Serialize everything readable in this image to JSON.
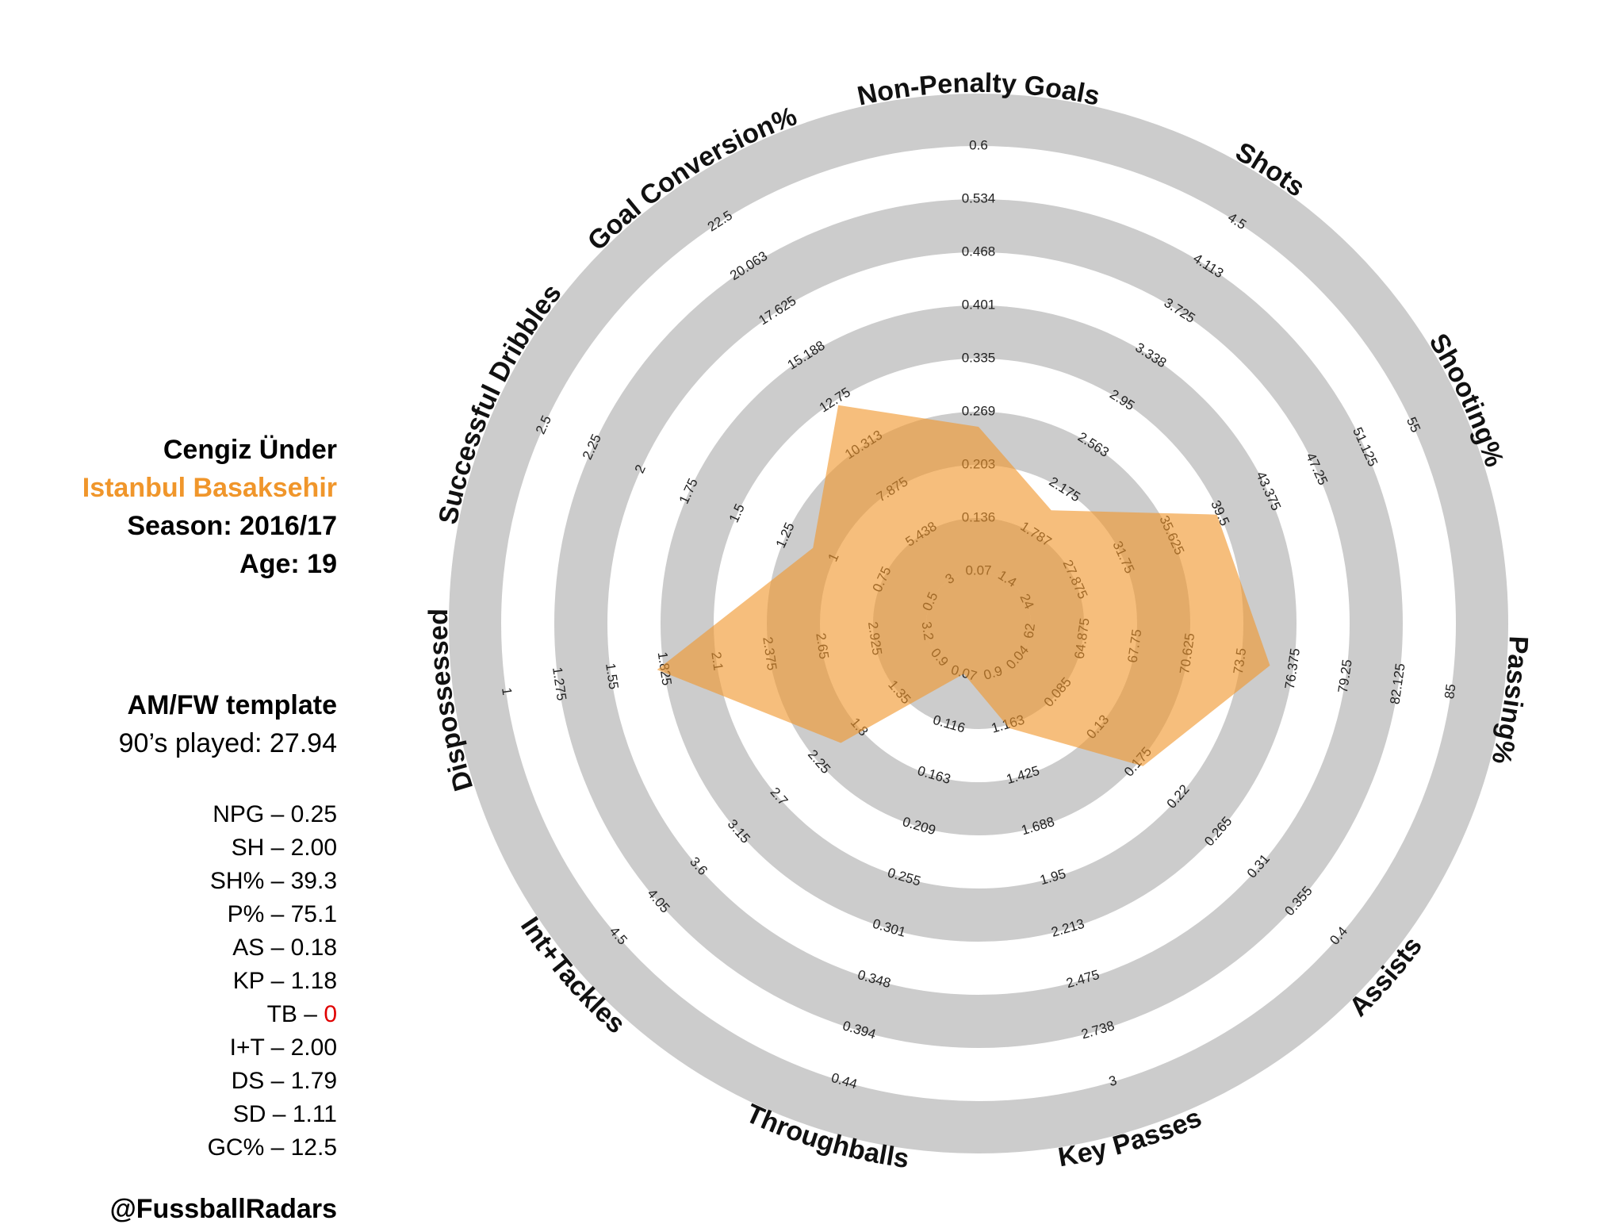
{
  "player": {
    "name": "Cengiz Ünder",
    "club": "Istanbul Basaksehir",
    "season": "Season: 2016/17",
    "age": "Age: 19",
    "template": "AM/FW template",
    "nineties": "90’s played: 27.94"
  },
  "stats": [
    {
      "label": "NPG – ",
      "value": "0.25"
    },
    {
      "label": "SH – ",
      "value": "2.00"
    },
    {
      "label": "SH% – ",
      "value": "39.3"
    },
    {
      "label": "P% – ",
      "value": "75.1"
    },
    {
      "label": "AS – ",
      "value": "0.18"
    },
    {
      "label": "KP – ",
      "value": "1.18"
    },
    {
      "label": "TB – ",
      "value": "0",
      "highlight": true
    },
    {
      "label": "I+T – ",
      "value": "2.00"
    },
    {
      "label": "DS – ",
      "value": "1.79"
    },
    {
      "label": "SD – ",
      "value": "1.11"
    },
    {
      "label": "GC% – ",
      "value": "12.5"
    }
  ],
  "handle": "@FussballRadars",
  "colors": {
    "ring": "#cccccc",
    "fill": "#f0962b",
    "fill_opacity": 0.62,
    "club": "#f0962b",
    "highlight": "#e00000"
  },
  "chart_data": {
    "type": "radar",
    "axes": [
      {
        "name": "Non-Penalty Goals",
        "ticks": [
          "0.07",
          "0.136",
          "0.203",
          "0.269",
          "0.335",
          "0.401",
          "0.468",
          "0.534",
          "0.6"
        ],
        "value": 0.25
      },
      {
        "name": "Shots",
        "ticks": [
          "1.4",
          "1.787",
          "2.175",
          "2.563",
          "2.95",
          "3.338",
          "3.725",
          "4.113",
          "4.5"
        ],
        "value": 2.0
      },
      {
        "name": "Shooting%",
        "ticks": [
          "24",
          "27.875",
          "31.75",
          "35.625",
          "39.5",
          "43.375",
          "47.25",
          "51.125",
          "55"
        ],
        "value": 39.3
      },
      {
        "name": "Passing%",
        "ticks": [
          "62",
          "64.875",
          "67.75",
          "70.625",
          "73.5",
          "76.375",
          "79.25",
          "82.125",
          "85"
        ],
        "value": 75.1
      },
      {
        "name": "Assists",
        "ticks": [
          "0.04",
          "0.085",
          "0.13",
          "0.175",
          "0.22",
          "0.265",
          "0.31",
          "0.355",
          "0.4"
        ],
        "value": 0.18
      },
      {
        "name": "Key Passes",
        "ticks": [
          "0.9",
          "1.163",
          "1.425",
          "1.688",
          "1.95",
          "2.213",
          "2.475",
          "2.738",
          "3"
        ],
        "value": 1.18
      },
      {
        "name": "Throughballs",
        "ticks": [
          "0.07",
          "0.116",
          "0.163",
          "0.209",
          "0.255",
          "0.301",
          "0.348",
          "0.394",
          "0.44"
        ],
        "value": 0
      },
      {
        "name": "Int+Tackles",
        "ticks": [
          "0.9",
          "1.35",
          "1.8",
          "2.25",
          "2.7",
          "3.15",
          "3.6",
          "4.05",
          "4.5"
        ],
        "value": 2.0
      },
      {
        "name": "Dispossessed",
        "ticks": [
          "3.2",
          "2.925",
          "2.65",
          "2.375",
          "2.1",
          "1.825",
          "1.55",
          "1.275",
          "1"
        ],
        "value": 1.79
      },
      {
        "name": "Successful Dribbles",
        "ticks": [
          "0.5",
          "0.75",
          "1",
          "1.25",
          "1.5",
          "1.75",
          "2",
          "2.25",
          "2.5"
        ],
        "value": 1.11
      },
      {
        "name": "Goal Conversion%",
        "ticks": [
          "3",
          "5.438",
          "7.875",
          "10.313",
          "12.75",
          "15.188",
          "17.625",
          "20.063",
          "22.5"
        ],
        "value": 12.5
      }
    ]
  }
}
